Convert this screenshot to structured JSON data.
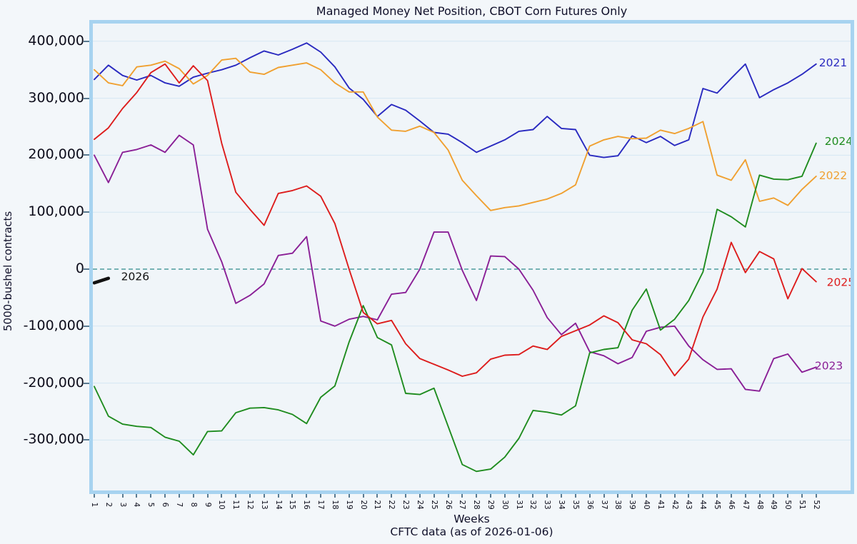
{
  "title": "Managed Money Net Position, CBOT Corn Futures Only",
  "axes": {
    "ylabel": "5000-bushel contracts",
    "xlabel": "Weeks",
    "caption": "CFTC data (as of 2026-01-06)",
    "yticks": [
      {
        "label": "400,000",
        "value": 400
      },
      {
        "label": "300,000",
        "value": 300
      },
      {
        "label": "200,000",
        "value": 200
      },
      {
        "label": "100,000",
        "value": 100
      },
      {
        "label": "0",
        "value": 0
      },
      {
        "label": "-100,000",
        "value": -100
      },
      {
        "label": "-200,000",
        "value": -200
      },
      {
        "label": "-300,000",
        "value": -300
      }
    ],
    "xticks": [
      1,
      2,
      3,
      4,
      5,
      6,
      7,
      8,
      9,
      10,
      11,
      12,
      13,
      14,
      15,
      16,
      17,
      18,
      19,
      20,
      21,
      22,
      23,
      24,
      25,
      26,
      27,
      28,
      29,
      30,
      31,
      32,
      33,
      34,
      35,
      36,
      37,
      38,
      39,
      40,
      41,
      42,
      43,
      44,
      45,
      46,
      47,
      48,
      49,
      50,
      51,
      52
    ]
  },
  "chart_data": {
    "type": "line",
    "title": "Managed Money Net Position, CBOT Corn Futures Only",
    "xlabel": "Weeks",
    "ylabel": "5000-bushel contracts",
    "x_unit": "week of year (1-52)",
    "y_unit": "thousand contracts (5000-bushel)",
    "ylim": [
      -380,
      430
    ],
    "grid": true,
    "legend_position": "inline-right-of-line-ends",
    "zero_line": {
      "value": 0,
      "color": "#2e8b8b",
      "style": "dashed"
    },
    "series": [
      {
        "name": "2021",
        "color": "#2a2ac0",
        "width": 1.9,
        "label_at": {
          "week": 52.2,
          "value": 362
        },
        "values": [
          333,
          358,
          340,
          332,
          340,
          327,
          321,
          337,
          344,
          350,
          358,
          371,
          383,
          376,
          386,
          397,
          381,
          355,
          318,
          298,
          268,
          289,
          279,
          260,
          240,
          237,
          222,
          205,
          216,
          227,
          242,
          245,
          268,
          247,
          245,
          200,
          196,
          199,
          234,
          222,
          233,
          217,
          227,
          317,
          309,
          335,
          360,
          301,
          315,
          327,
          342,
          360
        ]
      },
      {
        "name": "2022",
        "color": "#f0a030",
        "width": 1.9,
        "label_at": {
          "week": 52.2,
          "value": 164
        },
        "values": [
          350,
          327,
          322,
          355,
          358,
          365,
          352,
          325,
          340,
          367,
          370,
          346,
          342,
          354,
          358,
          362,
          350,
          327,
          311,
          311,
          267,
          244,
          242,
          251,
          240,
          209,
          156,
          129,
          103,
          108,
          111,
          117,
          123,
          133,
          148,
          216,
          227,
          233,
          229,
          230,
          244,
          238,
          247,
          259,
          165,
          156,
          192,
          119,
          125,
          112,
          140,
          163
        ]
      },
      {
        "name": "2023",
        "color": "#8a1f96",
        "width": 1.9,
        "label_at": {
          "week": 51.9,
          "value": -170
        },
        "values": [
          200,
          152,
          205,
          210,
          218,
          205,
          235,
          218,
          70,
          13,
          -60,
          -46,
          -26,
          24,
          28,
          57,
          -91,
          -100,
          -88,
          -83,
          -89,
          -44,
          -41,
          0,
          65,
          65,
          -2,
          -55,
          23,
          22,
          0,
          -37,
          -85,
          -115,
          -95,
          -145,
          -152,
          -166,
          -155,
          -109,
          -102,
          -100,
          -135,
          -159,
          -176,
          -175,
          -211,
          -214,
          -157,
          -149,
          -181,
          -172
        ]
      },
      {
        "name": "2024",
        "color": "#1f8c1f",
        "width": 1.9,
        "label_at": {
          "week": 52.6,
          "value": 224
        },
        "values": [
          -206,
          -258,
          -272,
          -276,
          -278,
          -295,
          -302,
          -326,
          -285,
          -284,
          -252,
          -244,
          -243,
          -247,
          -255,
          -271,
          -225,
          -205,
          -128,
          -64,
          -120,
          -133,
          -218,
          -220,
          -209,
          -276,
          -343,
          -355,
          -351,
          -330,
          -297,
          -248,
          -251,
          -256,
          -240,
          -147,
          -141,
          -138,
          -72,
          -35,
          -107,
          -88,
          -55,
          -5,
          105,
          92,
          74,
          165,
          158,
          157,
          163,
          221
        ]
      },
      {
        "name": "2025",
        "color": "#dd1c1c",
        "width": 1.9,
        "label_at": {
          "week": 52.75,
          "value": -23
        },
        "values": [
          228,
          248,
          282,
          310,
          345,
          360,
          327,
          357,
          331,
          221,
          135,
          105,
          77,
          133,
          138,
          146,
          128,
          80,
          0,
          -76,
          -96,
          -90,
          -131,
          -157,
          -167,
          -177,
          -188,
          -182,
          -158,
          -151,
          -150,
          -135,
          -141,
          -118,
          -108,
          -98,
          -82,
          -94,
          -124,
          -131,
          -150,
          -187,
          -158,
          -84,
          -35,
          47,
          -6,
          31,
          18,
          -52,
          1,
          -22
        ]
      },
      {
        "name": "2026",
        "color": "#111111",
        "width": 4.5,
        "label_at": {
          "week": 2.9,
          "value": -13
        },
        "values": [
          -24,
          -16
        ]
      }
    ]
  },
  "colors": {
    "page_bg": "#f3f7fa",
    "plot_bg": "#f0f5f9",
    "frame": "#a7d3f0",
    "grid": "#d5e7f3",
    "tick": "#5a7a90",
    "text": "#10102a",
    "zero_line": "#2e8b8b"
  }
}
